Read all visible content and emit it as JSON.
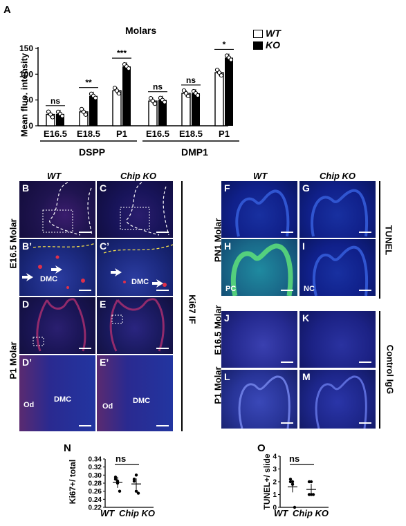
{
  "panel_A": {
    "letter": "A",
    "chart_data": {
      "type": "bar",
      "title": "Molars",
      "ylabel": "Mean fluo. intensity",
      "ylim": [
        0,
        150
      ],
      "yticks": [
        "0",
        "50",
        "100",
        "150"
      ],
      "groups": [
        {
          "name": "DSPP",
          "stages": [
            "E16.5",
            "E18.5",
            "P1"
          ],
          "WT": [
            22,
            27,
            68
          ],
          "KO": [
            23,
            58,
            115
          ],
          "sig": [
            "ns",
            "**",
            "***"
          ]
        },
        {
          "name": "DMP1",
          "stages": [
            "E16.5",
            "E18.5",
            "P1"
          ],
          "WT": [
            48,
            63,
            103
          ],
          "KO": [
            50,
            63,
            132
          ],
          "sig": [
            "ns",
            "ns",
            "*"
          ]
        }
      ],
      "legend": [
        "WT",
        "KO"
      ]
    }
  },
  "left_images": {
    "col_wt": "WT",
    "col_ko": "Chip KO",
    "row_e165": "E16.5  Molar",
    "row_p1": "P1 Molar",
    "side": "Ki67 IF",
    "panels": [
      "B",
      "C",
      "B’",
      "C’",
      "D",
      "E",
      "D’",
      "E’"
    ],
    "dmc": "DMC",
    "od": "Od"
  },
  "right_images": {
    "col_wt": "WT",
    "col_ko": "Chip KO",
    "row_pn1": "PN1 Molar",
    "row_e165": "E16.5  Molar",
    "row_p1": "P1 Molar",
    "side_tunel": "TUNEL",
    "side_igg": "Control IgG",
    "panels": [
      "F",
      "G",
      "H",
      "I",
      "J",
      "K",
      "L",
      "M"
    ],
    "pc": "PC",
    "nc": "NC"
  },
  "panel_N": {
    "letter": "N",
    "chart_data": {
      "type": "scatter",
      "ylabel": "Ki67+/ total",
      "ylim": [
        0.22,
        0.34
      ],
      "yticks": [
        "0.34",
        "0.32",
        "0.30",
        "0.28",
        "0.26",
        "0.24",
        "0.22"
      ],
      "categories": [
        "WT",
        "Chip KO"
      ],
      "sig": "ns"
    }
  },
  "panel_O": {
    "letter": "O",
    "chart_data": {
      "type": "scatter",
      "ylabel": "TUNEL+/ slide",
      "ylim": [
        0,
        4
      ],
      "yticks": [
        "4",
        "3",
        "2",
        "1",
        "0"
      ],
      "categories": [
        "WT",
        "Chip KO"
      ],
      "sig": "ns"
    }
  }
}
